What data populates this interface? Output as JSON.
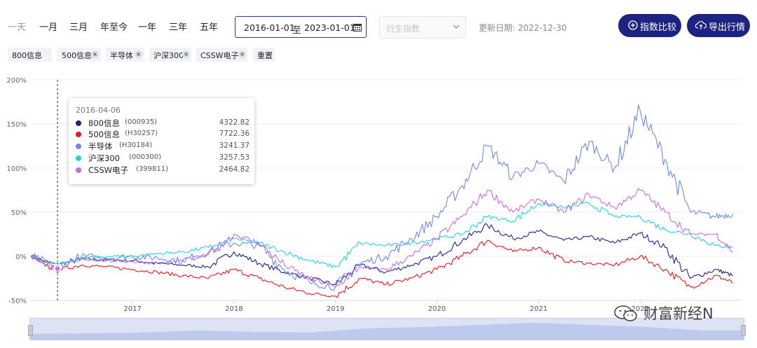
{
  "toolbar": {
    "ranges": [
      "一天",
      "一月",
      "三月",
      "年至今",
      "一年",
      "三年",
      "五年"
    ],
    "date_start": "2016-01-01",
    "date_sep": "至",
    "date_end": "2023-01-01",
    "derivative_placeholder": "衍生指数",
    "update_date": "更新日期: 2022-12-30",
    "compare_label": "指数比较",
    "export_label": "导出行情",
    "accent_color": "#1c2380"
  },
  "tags": {
    "items": [
      "800信息",
      "500信息",
      "半导体",
      "沪深300",
      "CSSW电子"
    ],
    "reset_label": "重置"
  },
  "tooltip": {
    "date": "2016-04-06",
    "rows": [
      {
        "name": "800信息",
        "code": "(000935)",
        "value": "4322.82",
        "color": "#1c2380"
      },
      {
        "name": "500信息",
        "code": "(H30257)",
        "value": "7722.36",
        "color": "#e3191d"
      },
      {
        "name": "半导体",
        "code": "(H30184)",
        "value": "3241.37",
        "color": "#6f88e6"
      },
      {
        "name": "沪深300",
        "code": "(000300)",
        "value": "3257.53",
        "color": "#21d4d8"
      },
      {
        "name": "CSSW电子",
        "code": "(399811)",
        "value": "2464.82",
        "color": "#c86bea"
      }
    ]
  },
  "watermark": "财富新经N",
  "chart_data": {
    "type": "line",
    "x": [
      "2016-01",
      "2016-04",
      "2016-07",
      "2016-10",
      "2017-01",
      "2017-04",
      "2017-07",
      "2017-10",
      "2018-01",
      "2018-04",
      "2018-07",
      "2018-10",
      "2019-01",
      "2019-04",
      "2019-07",
      "2019-10",
      "2020-01",
      "2020-04",
      "2020-07",
      "2020-10",
      "2021-01",
      "2021-04",
      "2021-07",
      "2021-10",
      "2022-01",
      "2022-04",
      "2022-07",
      "2022-10",
      "2022-12"
    ],
    "x_tick_labels": [
      "2017",
      "2018",
      "2019",
      "2020",
      "2021",
      "2022"
    ],
    "y_tick_labels": [
      "200%",
      "150%",
      "100%",
      "50%",
      "0%",
      "-50%"
    ],
    "ylim": [
      -50,
      200
    ],
    "grid": true,
    "series": [
      {
        "name": "800信息",
        "color": "#1c2380",
        "values": [
          0,
          -10,
          -3,
          -4,
          -5,
          -8,
          -10,
          -12,
          5,
          -8,
          -18,
          -25,
          -32,
          -10,
          -18,
          -10,
          0,
          18,
          35,
          20,
          28,
          18,
          22,
          15,
          26,
          10,
          -25,
          -15,
          -22
        ]
      },
      {
        "name": "500信息",
        "color": "#e3191d",
        "values": [
          0,
          -16,
          -10,
          -12,
          -15,
          -18,
          -22,
          -25,
          -15,
          -25,
          -35,
          -42,
          -45,
          -25,
          -32,
          -25,
          -15,
          0,
          18,
          5,
          10,
          -5,
          -8,
          -10,
          0,
          -15,
          -35,
          -22,
          -30
        ]
      },
      {
        "name": "半导体",
        "color": "#6f88e6",
        "values": [
          0,
          -12,
          0,
          -2,
          0,
          -2,
          -5,
          5,
          15,
          12,
          -15,
          -30,
          -35,
          -8,
          0,
          20,
          45,
          80,
          125,
          90,
          105,
          85,
          130,
          100,
          165,
          110,
          50,
          45,
          48
        ]
      },
      {
        "name": "沪深300",
        "color": "#21d4d8",
        "values": [
          0,
          -12,
          -2,
          0,
          0,
          3,
          5,
          10,
          20,
          15,
          5,
          -5,
          -12,
          15,
          12,
          15,
          20,
          25,
          45,
          40,
          60,
          55,
          60,
          45,
          45,
          30,
          25,
          12,
          10
        ]
      },
      {
        "name": "CSSW电子",
        "color": "#c86bea",
        "values": [
          0,
          -14,
          -3,
          -5,
          -6,
          -8,
          -5,
          2,
          25,
          15,
          -10,
          -25,
          -35,
          -12,
          -15,
          0,
          20,
          45,
          75,
          50,
          65,
          50,
          70,
          55,
          75,
          50,
          25,
          25,
          5
        ]
      }
    ]
  }
}
